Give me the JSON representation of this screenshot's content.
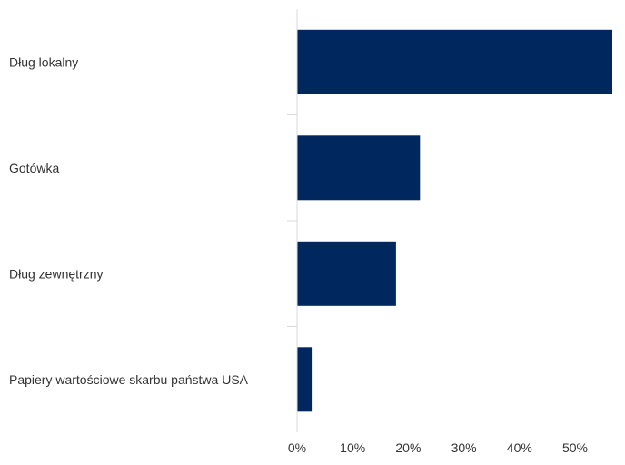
{
  "chart_data": {
    "type": "bar",
    "orientation": "horizontal",
    "title": "",
    "xlabel": "",
    "ylabel": "",
    "categories": [
      "Dług lokalny",
      "Gotówka",
      "Dług zewnętrzny",
      "Papiery wartościowe skarbu państwa USA"
    ],
    "values": [
      56.7,
      22.1,
      17.8,
      2.8
    ],
    "xlim": [
      0,
      58
    ],
    "x_ticks": [
      0,
      10,
      20,
      30,
      40,
      50
    ],
    "x_tick_labels": [
      "0%",
      "10%",
      "20%",
      "30%",
      "40%",
      "50%"
    ],
    "grid": false,
    "legend": "none",
    "bar_color": "#00285f",
    "axis_color": "#d9d9d9"
  }
}
